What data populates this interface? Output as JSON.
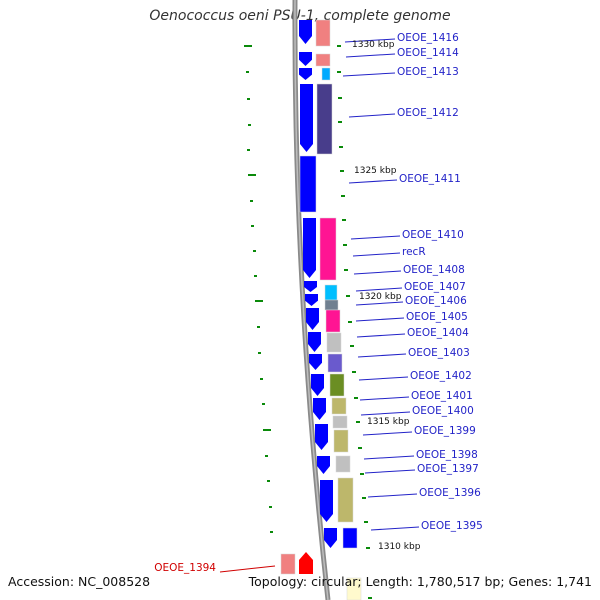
{
  "title": "Oenococcus oeni PSU-1, complete genome",
  "footer": {
    "accession": "Accession: NC_008528",
    "summary": "Topology: circular; Length: 1,780,517 bp; Genes: 1,741"
  },
  "colors": {
    "backbone": "#8a8a8a",
    "strand_arrow": "#0000ff",
    "tick": "#0a8a0a",
    "label_line": "#2323c8",
    "highlight_label": "#d00000"
  },
  "kbp_markers": [
    "1330 kbp",
    "1325 kbp",
    "1320 kbp",
    "1315 kbp",
    "1310 kbp"
  ],
  "genes": [
    {
      "label": "OEOE_1416",
      "color": "#f08080",
      "highlight": false
    },
    {
      "label": "OEOE_1414",
      "color": "#f08080",
      "highlight": false
    },
    {
      "label": "OEOE_1413",
      "color": "#00aaff",
      "highlight": false
    },
    {
      "label": "OEOE_1412",
      "color": "#483d8b",
      "highlight": false
    },
    {
      "label": "OEOE_1411",
      "color": "#0000ff",
      "highlight": false
    },
    {
      "label": "OEOE_1410",
      "color": "#ff1493",
      "highlight": false
    },
    {
      "label": "recR",
      "color": "#ff1493",
      "highlight": false
    },
    {
      "label": "OEOE_1408",
      "color": "#ff1493",
      "highlight": false
    },
    {
      "label": "OEOE_1407",
      "color": "#00bfff",
      "highlight": false
    },
    {
      "label": "OEOE_1406",
      "color": "#708090",
      "highlight": false
    },
    {
      "label": "OEOE_1405",
      "color": "#ff1493",
      "highlight": false
    },
    {
      "label": "OEOE_1404",
      "color": "#c0c0c0",
      "highlight": false
    },
    {
      "label": "OEOE_1403",
      "color": "#6a5acd",
      "highlight": false
    },
    {
      "label": "OEOE_1402",
      "color": "#6b8e23",
      "highlight": false
    },
    {
      "label": "OEOE_1401",
      "color": "#bdb76b",
      "highlight": false
    },
    {
      "label": "OEOE_1400",
      "color": "#c0c0c0",
      "highlight": false
    },
    {
      "label": "OEOE_1399",
      "color": "#bdb76b",
      "highlight": false
    },
    {
      "label": "OEOE_1398",
      "color": "#c0c0c0",
      "highlight": false
    },
    {
      "label": "OEOE_1397",
      "color": "#ffffff",
      "highlight": false
    },
    {
      "label": "OEOE_1396",
      "color": "#bdb76b",
      "highlight": false
    },
    {
      "label": "OEOE_1395",
      "color": "#0000ff",
      "highlight": false
    },
    {
      "label": "OEOE_1394",
      "color": "#f08080",
      "highlight": true
    }
  ]
}
